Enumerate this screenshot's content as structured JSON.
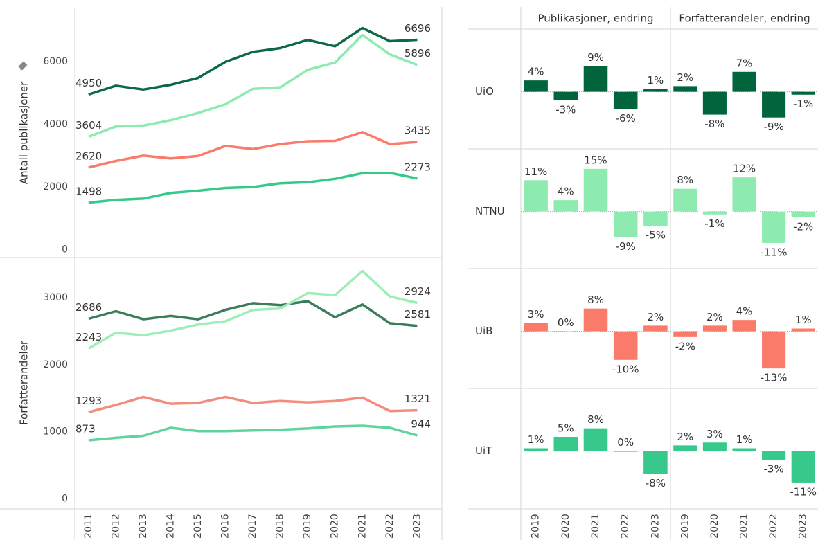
{
  "chart_data": [
    {
      "type": "line",
      "ylabel": "Antall publikasjoner",
      "x": [
        2011,
        2012,
        2013,
        2014,
        2015,
        2016,
        2017,
        2018,
        2019,
        2020,
        2021,
        2022,
        2023
      ],
      "xlim": [
        2010.5,
        2023.9
      ],
      "ylim": [
        -250,
        7700
      ],
      "yticks": [
        0,
        2000,
        4000,
        6000
      ],
      "grid": false,
      "series": [
        {
          "color": "#0b6a43",
          "values": [
            4950,
            5230,
            5110,
            5260,
            5480,
            5990,
            6310,
            6430,
            6690,
            6490,
            7070,
            6650,
            6696
          ]
        },
        {
          "color": "#8debb0",
          "values": [
            3604,
            3930,
            3960,
            4130,
            4360,
            4640,
            5130,
            5180,
            5740,
            5970,
            6850,
            6230,
            5896
          ]
        },
        {
          "color": "#fa7b69",
          "values": [
            2620,
            2830,
            3000,
            2910,
            2990,
            3310,
            3210,
            3370,
            3460,
            3470,
            3750,
            3370,
            3435
          ]
        },
        {
          "color": "#36c98b",
          "values": [
            1498,
            1590,
            1630,
            1810,
            1880,
            1970,
            2000,
            2120,
            2150,
            2260,
            2440,
            2450,
            2273
          ]
        }
      ]
    },
    {
      "type": "line",
      "ylabel": "Forfatterandeler",
      "x": [
        2011,
        2012,
        2013,
        2014,
        2015,
        2016,
        2017,
        2018,
        2019,
        2020,
        2021,
        2022,
        2023
      ],
      "xlim": [
        2010.5,
        2023.9
      ],
      "ylim": [
        -150,
        3580
      ],
      "yticks": [
        0,
        1000,
        2000,
        3000
      ],
      "grid": false,
      "series": [
        {
          "color": "#3a7d5a",
          "values": [
            2686,
            2800,
            2680,
            2730,
            2680,
            2820,
            2920,
            2890,
            2950,
            2710,
            2900,
            2620,
            2581
          ]
        },
        {
          "color": "#9deeb8",
          "values": [
            2243,
            2480,
            2440,
            2510,
            2600,
            2650,
            2820,
            2840,
            3070,
            3040,
            3400,
            3020,
            2924
          ]
        },
        {
          "color": "#f48c7c",
          "values": [
            1293,
            1400,
            1520,
            1420,
            1430,
            1520,
            1430,
            1460,
            1440,
            1460,
            1510,
            1310,
            1321
          ]
        },
        {
          "color": "#5fd49f",
          "values": [
            873,
            910,
            940,
            1060,
            1010,
            1010,
            1020,
            1030,
            1050,
            1080,
            1090,
            1060,
            944
          ]
        }
      ]
    },
    {
      "type": "bar",
      "title": "Publikasjoner, endring",
      "categories": [
        "2019",
        "2020",
        "2021",
        "2022",
        "2023"
      ],
      "ylim": [
        -20,
        22
      ],
      "series": [
        {
          "name": "UiO",
          "color": "#00643c",
          "values": [
            4,
            -3,
            9,
            -6,
            1
          ],
          "value_labels": [
            "4%",
            "-3%",
            "9%",
            "-6%",
            "1%"
          ]
        },
        {
          "name": "NTNU",
          "color": "#8debb0",
          "values": [
            11,
            4,
            15,
            -9,
            -5
          ],
          "value_labels": [
            "11%",
            "4%",
            "15%",
            "-9%",
            "-5%"
          ]
        },
        {
          "name": "UiB",
          "color": "#fa7b69",
          "values": [
            3,
            0,
            8,
            -10,
            2
          ],
          "value_labels": [
            "3%",
            "0%",
            "8%",
            "-10%",
            "2%"
          ]
        },
        {
          "name": "UiT",
          "color": "#36c98b",
          "values": [
            1,
            5,
            8,
            0,
            -8
          ],
          "value_labels": [
            "1%",
            "5%",
            "8%",
            "0%",
            "-8%"
          ]
        }
      ]
    },
    {
      "type": "bar",
      "title": "Forfatterandeler, endring",
      "categories": [
        "2019",
        "2020",
        "2021",
        "2022",
        "2023"
      ],
      "ylim": [
        -20,
        22
      ],
      "series": [
        {
          "color": "#00643c",
          "values": [
            2,
            -8,
            7,
            -9,
            -1
          ],
          "value_labels": [
            "2%",
            "-8%",
            "7%",
            "-9%",
            "-1%"
          ]
        },
        {
          "color": "#8debb0",
          "values": [
            8,
            -1,
            12,
            -11,
            -2
          ],
          "value_labels": [
            "8%",
            "-1%",
            "12%",
            "-11%",
            "-2%"
          ]
        },
        {
          "color": "#fa7b69",
          "values": [
            -2,
            2,
            4,
            -13,
            1
          ],
          "value_labels": [
            "-2%",
            "2%",
            "4%",
            "-13%",
            "1%"
          ]
        },
        {
          "color": "#36c98b",
          "values": [
            2,
            3,
            1,
            -3,
            -11
          ],
          "value_labels": [
            "2%",
            "3%",
            "1%",
            "-3%",
            "-11%"
          ]
        }
      ]
    }
  ]
}
